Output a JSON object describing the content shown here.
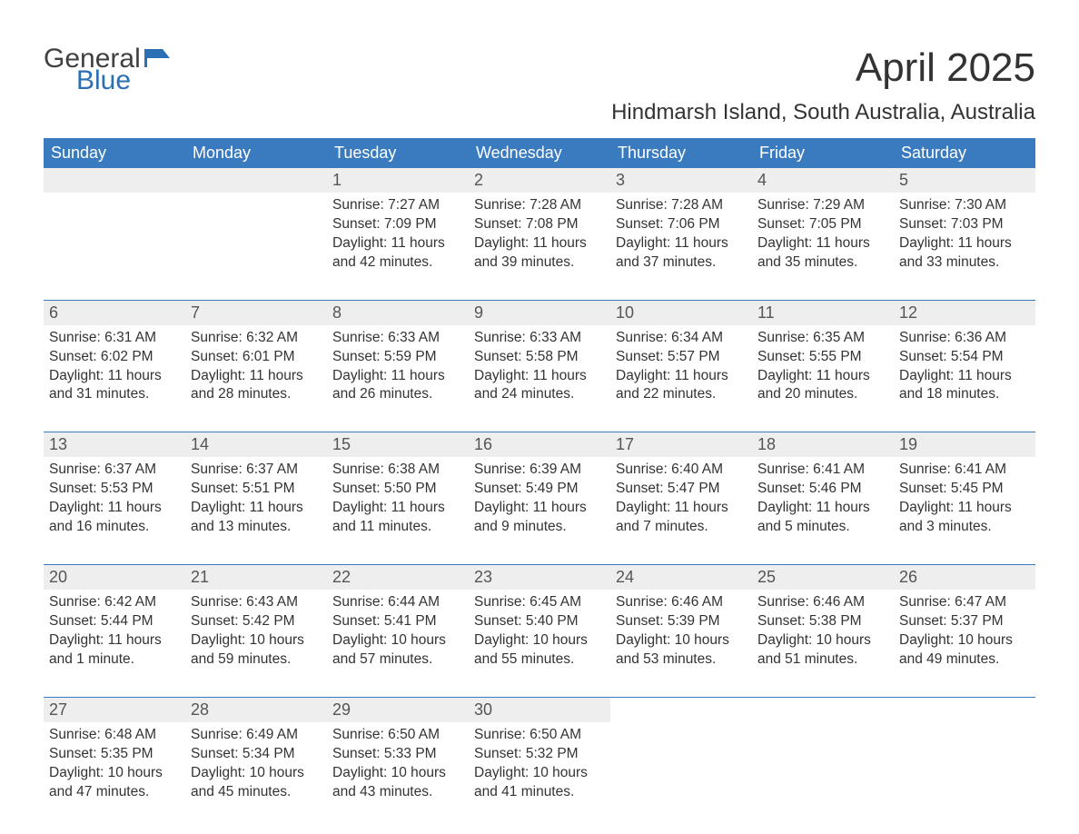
{
  "logo": {
    "general": "General",
    "blue": "Blue",
    "flag_color": "#2b6fb5"
  },
  "title": "April 2025",
  "location": "Hindmarsh Island, South Australia, Australia",
  "header_bg": "#3a7bbf",
  "header_fg": "#ffffff",
  "daynum_bg": "#eeeeee",
  "text_color": "#333333",
  "days_of_week": [
    "Sunday",
    "Monday",
    "Tuesday",
    "Wednesday",
    "Thursday",
    "Friday",
    "Saturday"
  ],
  "weeks": [
    [
      null,
      null,
      {
        "n": "1",
        "sunrise": "7:27 AM",
        "sunset": "7:09 PM",
        "daylight": "11 hours and 42 minutes."
      },
      {
        "n": "2",
        "sunrise": "7:28 AM",
        "sunset": "7:08 PM",
        "daylight": "11 hours and 39 minutes."
      },
      {
        "n": "3",
        "sunrise": "7:28 AM",
        "sunset": "7:06 PM",
        "daylight": "11 hours and 37 minutes."
      },
      {
        "n": "4",
        "sunrise": "7:29 AM",
        "sunset": "7:05 PM",
        "daylight": "11 hours and 35 minutes."
      },
      {
        "n": "5",
        "sunrise": "7:30 AM",
        "sunset": "7:03 PM",
        "daylight": "11 hours and 33 minutes."
      }
    ],
    [
      {
        "n": "6",
        "sunrise": "6:31 AM",
        "sunset": "6:02 PM",
        "daylight": "11 hours and 31 minutes."
      },
      {
        "n": "7",
        "sunrise": "6:32 AM",
        "sunset": "6:01 PM",
        "daylight": "11 hours and 28 minutes."
      },
      {
        "n": "8",
        "sunrise": "6:33 AM",
        "sunset": "5:59 PM",
        "daylight": "11 hours and 26 minutes."
      },
      {
        "n": "9",
        "sunrise": "6:33 AM",
        "sunset": "5:58 PM",
        "daylight": "11 hours and 24 minutes."
      },
      {
        "n": "10",
        "sunrise": "6:34 AM",
        "sunset": "5:57 PM",
        "daylight": "11 hours and 22 minutes."
      },
      {
        "n": "11",
        "sunrise": "6:35 AM",
        "sunset": "5:55 PM",
        "daylight": "11 hours and 20 minutes."
      },
      {
        "n": "12",
        "sunrise": "6:36 AM",
        "sunset": "5:54 PM",
        "daylight": "11 hours and 18 minutes."
      }
    ],
    [
      {
        "n": "13",
        "sunrise": "6:37 AM",
        "sunset": "5:53 PM",
        "daylight": "11 hours and 16 minutes."
      },
      {
        "n": "14",
        "sunrise": "6:37 AM",
        "sunset": "5:51 PM",
        "daylight": "11 hours and 13 minutes."
      },
      {
        "n": "15",
        "sunrise": "6:38 AM",
        "sunset": "5:50 PM",
        "daylight": "11 hours and 11 minutes."
      },
      {
        "n": "16",
        "sunrise": "6:39 AM",
        "sunset": "5:49 PM",
        "daylight": "11 hours and 9 minutes."
      },
      {
        "n": "17",
        "sunrise": "6:40 AM",
        "sunset": "5:47 PM",
        "daylight": "11 hours and 7 minutes."
      },
      {
        "n": "18",
        "sunrise": "6:41 AM",
        "sunset": "5:46 PM",
        "daylight": "11 hours and 5 minutes."
      },
      {
        "n": "19",
        "sunrise": "6:41 AM",
        "sunset": "5:45 PM",
        "daylight": "11 hours and 3 minutes."
      }
    ],
    [
      {
        "n": "20",
        "sunrise": "6:42 AM",
        "sunset": "5:44 PM",
        "daylight": "11 hours and 1 minute."
      },
      {
        "n": "21",
        "sunrise": "6:43 AM",
        "sunset": "5:42 PM",
        "daylight": "10 hours and 59 minutes."
      },
      {
        "n": "22",
        "sunrise": "6:44 AM",
        "sunset": "5:41 PM",
        "daylight": "10 hours and 57 minutes."
      },
      {
        "n": "23",
        "sunrise": "6:45 AM",
        "sunset": "5:40 PM",
        "daylight": "10 hours and 55 minutes."
      },
      {
        "n": "24",
        "sunrise": "6:46 AM",
        "sunset": "5:39 PM",
        "daylight": "10 hours and 53 minutes."
      },
      {
        "n": "25",
        "sunrise": "6:46 AM",
        "sunset": "5:38 PM",
        "daylight": "10 hours and 51 minutes."
      },
      {
        "n": "26",
        "sunrise": "6:47 AM",
        "sunset": "5:37 PM",
        "daylight": "10 hours and 49 minutes."
      }
    ],
    [
      {
        "n": "27",
        "sunrise": "6:48 AM",
        "sunset": "5:35 PM",
        "daylight": "10 hours and 47 minutes."
      },
      {
        "n": "28",
        "sunrise": "6:49 AM",
        "sunset": "5:34 PM",
        "daylight": "10 hours and 45 minutes."
      },
      {
        "n": "29",
        "sunrise": "6:50 AM",
        "sunset": "5:33 PM",
        "daylight": "10 hours and 43 minutes."
      },
      {
        "n": "30",
        "sunrise": "6:50 AM",
        "sunset": "5:32 PM",
        "daylight": "10 hours and 41 minutes."
      },
      null,
      null,
      null
    ]
  ],
  "labels": {
    "sunrise": "Sunrise: ",
    "sunset": "Sunset: ",
    "daylight": "Daylight: "
  }
}
